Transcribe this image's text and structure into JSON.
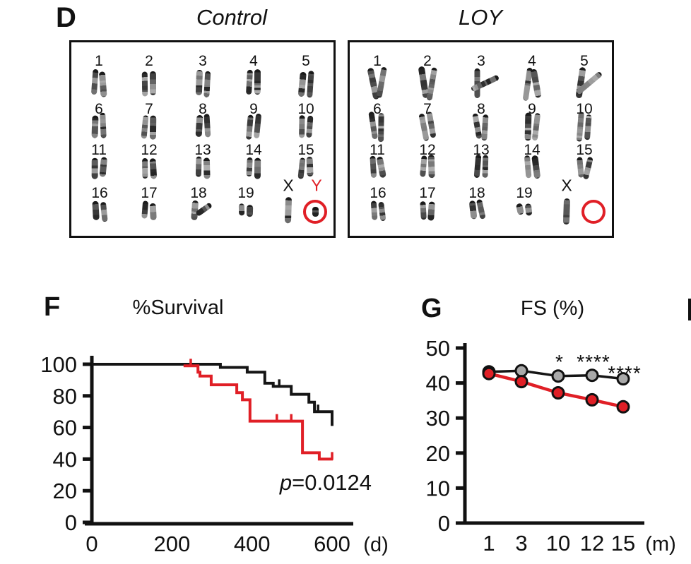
{
  "colors": {
    "red": "#e01f26",
    "black": "#151515",
    "gray_marker": "#a9a9a9"
  },
  "panel_d": {
    "label": "D",
    "panels": [
      {
        "id": "control",
        "title": "Control",
        "rows": [
          [
            "1",
            "2",
            "3",
            "4",
            "5"
          ],
          [
            "6",
            "7",
            "8",
            "9",
            "10"
          ],
          [
            "11",
            "12",
            "13",
            "14",
            "15"
          ],
          [
            "16",
            "17",
            "18",
            "19"
          ]
        ],
        "x_label": "X",
        "y_label": "Y",
        "y_chromosome_present": true
      },
      {
        "id": "loy",
        "title": "LOY",
        "rows": [
          [
            "1",
            "2",
            "3",
            "4",
            "5"
          ],
          [
            "6",
            "7",
            "8",
            "9",
            "10"
          ],
          [
            "11",
            "12",
            "13",
            "14",
            "15"
          ],
          [
            "16",
            "17",
            "18",
            "19"
          ]
        ],
        "x_label": "X",
        "y_label": "",
        "y_chromosome_present": false
      }
    ]
  },
  "panel_f_label": "F",
  "panel_g_label": "G",
  "chart_data": [
    {
      "panel": "F",
      "type": "line",
      "subtype": "kaplan-meier-step",
      "title": "%Survival",
      "xlabel": "(d)",
      "ylabel": "",
      "xlim": [
        0,
        620
      ],
      "ylim": [
        0,
        100
      ],
      "xticks": [
        0,
        200,
        400,
        600
      ],
      "yticks": [
        0,
        20,
        40,
        60,
        80,
        100
      ],
      "grid": false,
      "annotation": {
        "italic_part": "p",
        "text_part": "=0.0124",
        "x": 584,
        "y": 26
      },
      "series": [
        {
          "name": "Control",
          "color_key": "black",
          "points": [
            [
              0,
              100
            ],
            [
              321,
              100
            ],
            [
              321,
              98
            ],
            [
              388,
              98
            ],
            [
              388,
              95
            ],
            [
              432,
              95
            ],
            [
              432,
              88
            ],
            [
              453,
              88
            ],
            [
              453,
              86
            ],
            [
              498,
              86
            ],
            [
              498,
              81
            ],
            [
              542,
              81
            ],
            [
              542,
              76
            ],
            [
              556,
              76
            ],
            [
              556,
              70
            ],
            [
              600,
              70
            ],
            [
              600,
              61
            ]
          ],
          "censor_marks": [
            [
              468,
              86
            ],
            [
              565,
              70
            ]
          ]
        },
        {
          "name": "LOY",
          "color_key": "red",
          "points": [
            [
              229,
              99
            ],
            [
              265,
              99
            ],
            [
              265,
              95
            ],
            [
              270,
              95
            ],
            [
              270,
              92.5
            ],
            [
              298,
              92.5
            ],
            [
              298,
              87
            ],
            [
              362,
              87
            ],
            [
              362,
              82
            ],
            [
              376,
              82
            ],
            [
              376,
              77.5
            ],
            [
              395,
              77.5
            ],
            [
              395,
              64
            ],
            [
              526,
              64
            ],
            [
              526,
              44
            ],
            [
              568,
              44
            ],
            [
              568,
              40
            ],
            [
              602,
              40
            ]
          ],
          "censor_marks": [
            [
              247,
              99
            ],
            [
              462,
              64
            ],
            [
              498,
              64
            ],
            [
              600,
              40
            ]
          ]
        }
      ]
    },
    {
      "panel": "G",
      "type": "line",
      "title": "FS (%)",
      "xlabel": "(m)",
      "categories": [
        "1",
        "3",
        "10",
        "12",
        "15"
      ],
      "ylim": [
        0,
        50
      ],
      "yticks": [
        0,
        10,
        20,
        30,
        40,
        50
      ],
      "grid": false,
      "series": [
        {
          "name": "Control",
          "color_key": "black",
          "marker_fill_key": "gray_marker",
          "values": [
            43.2,
            43.5,
            42.0,
            42.2,
            41.2
          ],
          "error": [
            0.8,
            0.8,
            0.9,
            0.9,
            0.9
          ]
        },
        {
          "name": "LOY",
          "color_key": "red",
          "marker_fill_key": "red",
          "values": [
            42.7,
            40.4,
            37.2,
            35.2,
            33.2
          ],
          "error": [
            0.8,
            0.9,
            1.0,
            0.9,
            0.9
          ]
        }
      ],
      "significance": [
        {
          "category_index": 2,
          "text": "*",
          "row": 0
        },
        {
          "category_index": 3,
          "text": "****",
          "row": 0
        },
        {
          "category_index": 4,
          "text": "****",
          "row": 1
        }
      ]
    }
  ]
}
